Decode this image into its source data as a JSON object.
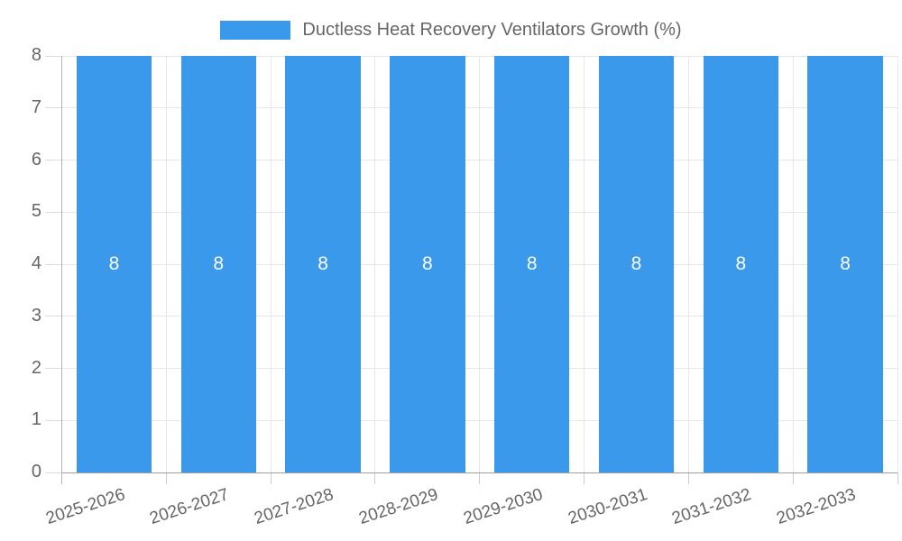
{
  "chart_data": {
    "type": "bar",
    "title": "Ductless Heat Recovery Ventilators Growth (%)",
    "legend": {
      "label": "Ductless Heat Recovery Ventilators Growth (%)",
      "position": "top"
    },
    "categories": [
      "2025-2026",
      "2026-2027",
      "2027-2028",
      "2028-2029",
      "2029-2030",
      "2030-2031",
      "2031-2032",
      "2032-2033"
    ],
    "values": [
      8,
      8,
      8,
      8,
      8,
      8,
      8,
      8
    ],
    "data_labels": [
      "8",
      "8",
      "8",
      "8",
      "8",
      "8",
      "8",
      "8"
    ],
    "xlabel": "",
    "ylabel": "",
    "ylim": [
      0,
      8
    ],
    "yticks": [
      0,
      1,
      2,
      3,
      4,
      5,
      6,
      7,
      8
    ],
    "grid": true,
    "bar_width_ratio": 0.72,
    "x_label_rotation_deg": -18,
    "colors": {
      "bar": "#3B99EC",
      "grid": "#E6E6E6",
      "y_tick_mark": "#DCDCDC",
      "x_tick_mark": "#CCCCCC",
      "axis_left": "#B3B3B3",
      "axis_bottom": "#9E9E9E",
      "tick_text": "#666666",
      "data_label_text": "#FFFFFF",
      "legend_text": "#666666",
      "background": "#FFFFFF"
    }
  }
}
